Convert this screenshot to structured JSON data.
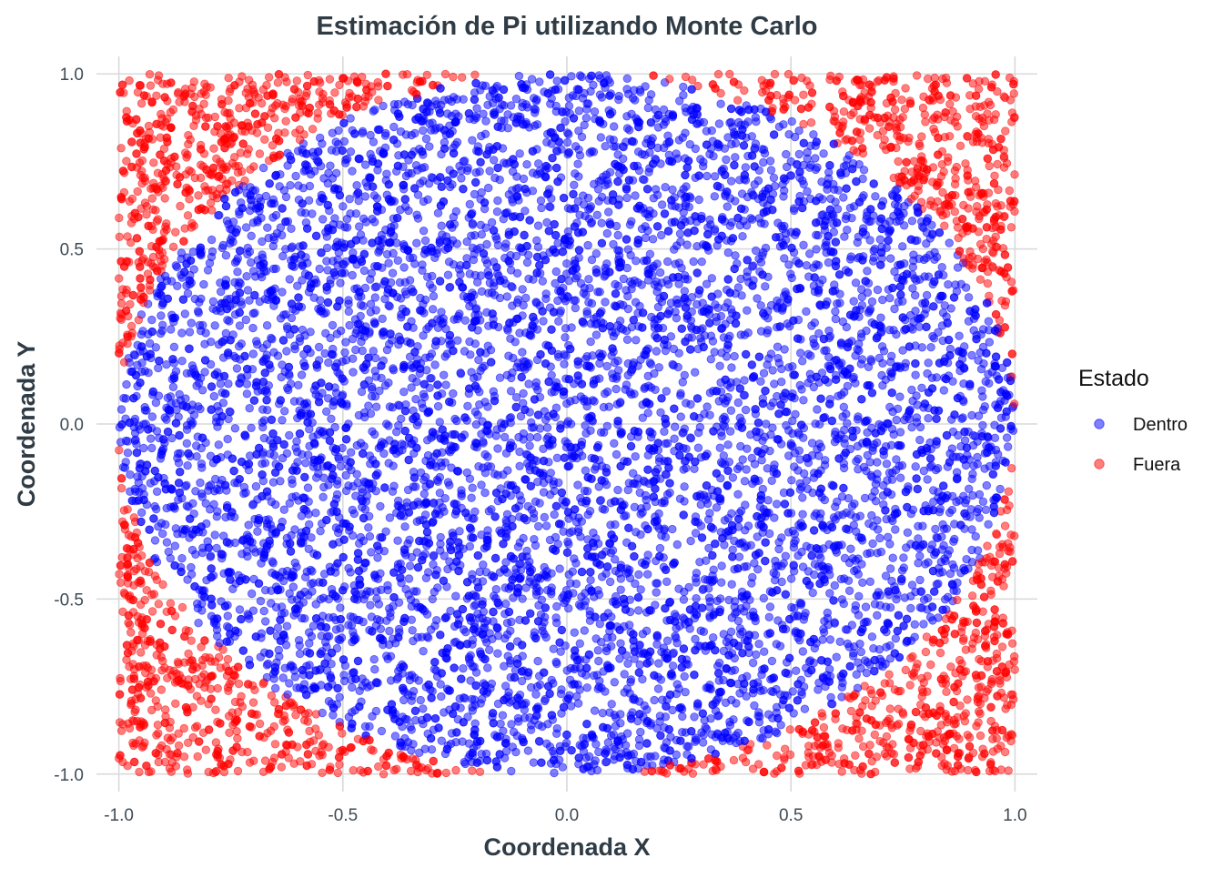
{
  "chart_data": {
    "type": "scatter",
    "title": "Estimación de Pi utilizando Monte Carlo",
    "xlabel": "Coordenada X",
    "ylabel": "Coordenada Y",
    "xlim": [
      -1.05,
      1.05
    ],
    "ylim": [
      -1.05,
      1.05
    ],
    "x_ticks": [
      -1.0,
      -0.5,
      0.0,
      0.5,
      1.0
    ],
    "y_ticks": [
      -1.0,
      -0.5,
      0.0,
      0.5,
      1.0
    ],
    "x_tick_labels": [
      "-1.0",
      "-0.5",
      "0.0",
      "0.5",
      "1.0"
    ],
    "y_tick_labels": [
      "-1.0",
      "-0.5",
      "0.0",
      "0.5",
      "1.0"
    ],
    "grid": true,
    "legend": {
      "title": "Estado",
      "placement": "right",
      "entries": [
        {
          "label": "Dentro",
          "color": "#0000ff"
        },
        {
          "label": "Fuera",
          "color": "#ff0000"
        }
      ]
    },
    "series": [
      {
        "name": "Dentro",
        "color": "#0000ff",
        "opacity": 0.5,
        "region": "x^2 + y^2 <= 1",
        "x": [
          0.0,
          0.25,
          -0.3,
          0.6,
          -0.7,
          0.1,
          -0.45,
          0.8,
          -0.85,
          0.35,
          -0.15,
          0.5,
          -0.55,
          0.72,
          -0.2,
          0.05
        ],
        "y": [
          0.0,
          0.4,
          -0.5,
          0.3,
          0.2,
          -0.8,
          0.65,
          -0.4,
          -0.3,
          -0.6,
          0.9,
          0.75,
          -0.7,
          0.55,
          0.1,
          -0.95
        ]
      },
      {
        "name": "Fuera",
        "color": "#ff0000",
        "opacity": 0.5,
        "region": "x^2 + y^2 > 1",
        "x": [
          0.9,
          -0.9,
          0.95,
          -0.95,
          0.85,
          -0.8,
          0.98,
          -0.98
        ],
        "y": [
          0.9,
          0.85,
          -0.9,
          -0.85,
          0.75,
          -0.8,
          0.35,
          -0.4
        ]
      }
    ],
    "sampled_points_per_series": {
      "Dentro": 7850,
      "Fuera": 2150
    }
  }
}
